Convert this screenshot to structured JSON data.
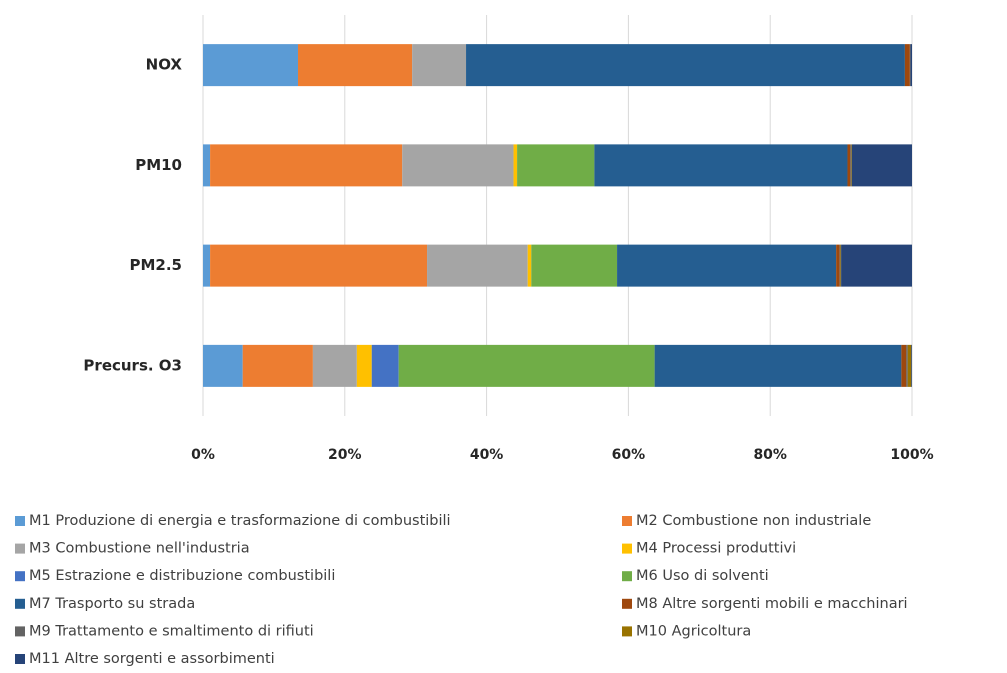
{
  "chart_data": {
    "type": "bar",
    "orientation": "horizontal",
    "stacked": true,
    "categories": [
      "NOX",
      "PM10",
      "PM2.5",
      "Precurs. O3"
    ],
    "series": [
      {
        "name": "M1 Produzione di energia e trasformazione di combustibili",
        "color": "#5b9bd5",
        "values": [
          13.4,
          1.0,
          1.0,
          5.6
        ]
      },
      {
        "name": "M2 Combustione non industriale",
        "color": "#ed7d31",
        "values": [
          16.1,
          27.1,
          30.6,
          9.9
        ]
      },
      {
        "name": "M3 Combustione nell'industria",
        "color": "#a5a5a5",
        "values": [
          7.6,
          15.7,
          14.2,
          6.2
        ]
      },
      {
        "name": "M4 Processi produttivi",
        "color": "#ffc000",
        "values": [
          0,
          0.5,
          0.5,
          2.1
        ]
      },
      {
        "name": "M5 Estrazione e distribuzione combustibili",
        "color": "#4472c4",
        "values": [
          0,
          0,
          0,
          3.8
        ]
      },
      {
        "name": "M6 Uso di solventi",
        "color": "#70ad47",
        "values": [
          0,
          10.9,
          12.1,
          36.1
        ]
      },
      {
        "name": "M7 Trasporto su strada",
        "color": "#255e91",
        "values": [
          61.9,
          35.7,
          30.9,
          34.8
        ]
      },
      {
        "name": "M8 Altre sorgenti mobili e macchinari",
        "color": "#9e480e",
        "values": [
          0.7,
          0.4,
          0.5,
          0.7
        ]
      },
      {
        "name": "M9 Trattamento e smaltimento di rifiuti",
        "color": "#636363",
        "values": [
          0.1,
          0.1,
          0.1,
          0.2
        ]
      },
      {
        "name": "M10 Agricoltura",
        "color": "#997300",
        "values": [
          0,
          0.1,
          0.1,
          0.5
        ]
      },
      {
        "name": "M11 Altre sorgenti e assorbimenti",
        "color": "#264478",
        "values": [
          0.2,
          8.5,
          10.0,
          0.1
        ]
      }
    ],
    "xlim": [
      0,
      100
    ],
    "xticks": [
      {
        "value": 0,
        "label": "0%"
      },
      {
        "value": 20,
        "label": "20%"
      },
      {
        "value": 40,
        "label": "40%"
      },
      {
        "value": 60,
        "label": "60%"
      },
      {
        "value": 80,
        "label": "80%"
      },
      {
        "value": 100,
        "label": "100%"
      }
    ],
    "grid": true,
    "legend": "bottom"
  }
}
